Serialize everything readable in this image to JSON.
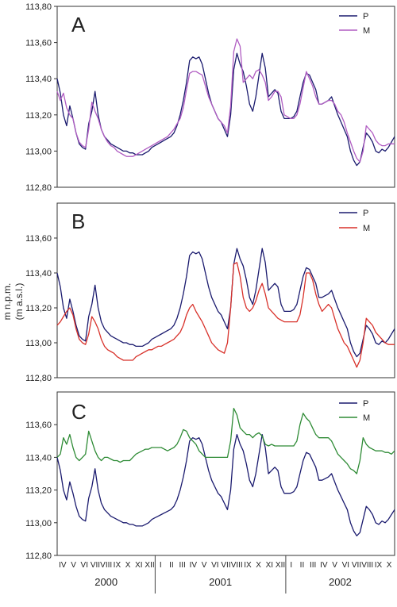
{
  "ylabel_lines": [
    "m n.p.m.",
    "(m a.s.l.)"
  ],
  "colors": {
    "P": "#1a1a6e",
    "A_M": "#b05cc2",
    "B_M": "#d8312a",
    "C_M": "#2e8b35"
  },
  "months": [
    "IV",
    "V",
    "VI",
    "VII",
    "VIII",
    "IX",
    "X",
    "XI",
    "XII",
    "I",
    "II",
    "III",
    "IV",
    "V",
    "VI",
    "VII",
    "VIII",
    "IX",
    "X",
    "XI",
    "XII",
    "I",
    "II",
    "III",
    "IV",
    "V",
    "VI",
    "VII",
    "VIII",
    "IX",
    "X"
  ],
  "years": [
    "2000",
    "2001",
    "2002"
  ],
  "chart_data": [
    {
      "type": "line",
      "panel": "A",
      "ylim": [
        112.8,
        113.8
      ],
      "yticks": [
        "112,80",
        "113,00",
        "113,20",
        "113,40",
        "113,60",
        "113,80"
      ],
      "legend_position": "top-right",
      "series": [
        {
          "name": "P",
          "color": "#1a1a6e",
          "values": [
            113.4,
            113.32,
            113.2,
            113.14,
            113.25,
            113.18,
            113.1,
            113.04,
            113.02,
            113.01,
            113.15,
            113.22,
            113.33,
            113.2,
            113.12,
            113.08,
            113.06,
            113.04,
            113.03,
            113.02,
            113.01,
            113.0,
            113.0,
            112.99,
            112.99,
            112.98,
            112.98,
            112.98,
            112.99,
            113.0,
            113.02,
            113.03,
            113.04,
            113.05,
            113.06,
            113.07,
            113.08,
            113.1,
            113.14,
            113.2,
            113.28,
            113.38,
            113.5,
            113.52,
            113.51,
            113.52,
            113.48,
            113.4,
            113.32,
            113.26,
            113.22,
            113.18,
            113.16,
            113.12,
            113.08,
            113.2,
            113.45,
            113.54,
            113.48,
            113.44,
            113.36,
            113.26,
            113.22,
            113.3,
            113.42,
            113.54,
            113.46,
            113.3,
            113.32,
            113.34,
            113.32,
            113.22,
            113.18,
            113.18,
            113.18,
            113.19,
            113.22,
            113.3,
            113.38,
            113.43,
            113.42,
            113.38,
            113.34,
            113.26,
            113.26,
            113.27,
            113.28,
            113.3,
            113.25,
            113.2,
            113.16,
            113.12,
            113.08,
            113.0,
            112.95,
            112.92,
            112.94,
            113.02,
            113.1,
            113.08,
            113.05,
            113.0,
            112.99,
            113.01,
            113.0,
            113.02,
            113.05,
            113.08
          ]
        },
        {
          "name": "M",
          "color": "#b05cc2",
          "values": [
            113.33,
            113.28,
            113.32,
            113.24,
            113.2,
            113.18,
            113.1,
            113.05,
            113.03,
            113.02,
            113.12,
            113.27,
            113.22,
            113.18,
            113.12,
            113.08,
            113.05,
            113.03,
            113.02,
            113.0,
            112.99,
            112.98,
            112.97,
            112.97,
            112.97,
            112.98,
            112.99,
            113.0,
            113.01,
            113.02,
            113.03,
            113.04,
            113.05,
            113.06,
            113.07,
            113.08,
            113.1,
            113.12,
            113.15,
            113.18,
            113.24,
            113.34,
            113.43,
            113.44,
            113.44,
            113.43,
            113.42,
            113.36,
            113.3,
            113.26,
            113.22,
            113.18,
            113.16,
            113.14,
            113.1,
            113.25,
            113.55,
            113.62,
            113.58,
            113.38,
            113.4,
            113.42,
            113.4,
            113.44,
            113.45,
            113.42,
            113.38,
            113.28,
            113.3,
            113.33,
            113.33,
            113.3,
            113.2,
            113.19,
            113.18,
            113.18,
            113.2,
            113.26,
            113.35,
            113.44,
            113.4,
            113.36,
            113.3,
            113.26,
            113.26,
            113.27,
            113.28,
            113.28,
            113.26,
            113.22,
            113.2,
            113.16,
            113.1,
            113.05,
            113.0,
            112.96,
            112.94,
            113.0,
            113.14,
            113.12,
            113.1,
            113.06,
            113.04,
            113.03,
            113.03,
            113.04,
            113.04,
            113.04
          ]
        }
      ]
    },
    {
      "type": "line",
      "panel": "B",
      "ylim": [
        112.8,
        113.8
      ],
      "yticks": [
        "112,80",
        "113,00",
        "113,20",
        "113,40",
        "113,60"
      ],
      "legend_position": "top-right",
      "series": [
        {
          "name": "P",
          "color": "#1a1a6e",
          "values": [
            113.4,
            113.32,
            113.2,
            113.14,
            113.25,
            113.18,
            113.1,
            113.04,
            113.02,
            113.01,
            113.15,
            113.22,
            113.33,
            113.2,
            113.12,
            113.08,
            113.06,
            113.04,
            113.03,
            113.02,
            113.01,
            113.0,
            113.0,
            112.99,
            112.99,
            112.98,
            112.98,
            112.98,
            112.99,
            113.0,
            113.02,
            113.03,
            113.04,
            113.05,
            113.06,
            113.07,
            113.08,
            113.1,
            113.14,
            113.2,
            113.28,
            113.38,
            113.5,
            113.52,
            113.51,
            113.52,
            113.48,
            113.4,
            113.32,
            113.26,
            113.22,
            113.18,
            113.16,
            113.12,
            113.08,
            113.2,
            113.45,
            113.54,
            113.48,
            113.44,
            113.36,
            113.26,
            113.22,
            113.3,
            113.42,
            113.54,
            113.46,
            113.3,
            113.32,
            113.34,
            113.32,
            113.22,
            113.18,
            113.18,
            113.18,
            113.19,
            113.22,
            113.3,
            113.38,
            113.43,
            113.42,
            113.38,
            113.34,
            113.26,
            113.26,
            113.27,
            113.28,
            113.3,
            113.25,
            113.2,
            113.16,
            113.12,
            113.08,
            113.0,
            112.95,
            112.92,
            112.94,
            113.02,
            113.1,
            113.08,
            113.05,
            113.0,
            112.99,
            113.01,
            113.0,
            113.02,
            113.05,
            113.08
          ]
        },
        {
          "name": "M",
          "color": "#d8312a",
          "values": [
            113.1,
            113.12,
            113.15,
            113.18,
            113.2,
            113.16,
            113.08,
            113.02,
            113.0,
            112.99,
            113.05,
            113.15,
            113.12,
            113.08,
            113.02,
            112.98,
            112.96,
            112.95,
            112.94,
            112.92,
            112.91,
            112.9,
            112.9,
            112.9,
            112.9,
            112.92,
            112.93,
            112.94,
            112.95,
            112.96,
            112.96,
            112.97,
            112.98,
            112.98,
            112.99,
            113.0,
            113.01,
            113.02,
            113.04,
            113.06,
            113.1,
            113.16,
            113.2,
            113.22,
            113.18,
            113.15,
            113.12,
            113.08,
            113.04,
            113.0,
            112.98,
            112.96,
            112.95,
            112.94,
            113.0,
            113.2,
            113.45,
            113.46,
            113.38,
            113.26,
            113.2,
            113.18,
            113.2,
            113.24,
            113.3,
            113.34,
            113.28,
            113.2,
            113.18,
            113.16,
            113.14,
            113.13,
            113.12,
            113.12,
            113.12,
            113.12,
            113.12,
            113.16,
            113.26,
            113.4,
            113.4,
            113.36,
            113.28,
            113.22,
            113.18,
            113.2,
            113.22,
            113.2,
            113.14,
            113.08,
            113.04,
            113.0,
            112.98,
            112.94,
            112.9,
            112.86,
            112.9,
            113.0,
            113.14,
            113.12,
            113.1,
            113.06,
            113.04,
            113.02,
            113.0,
            112.99,
            112.99,
            112.99
          ]
        }
      ]
    },
    {
      "type": "line",
      "panel": "C",
      "ylim": [
        112.8,
        113.8
      ],
      "yticks": [
        "112,80",
        "113,00",
        "113,20",
        "113,40",
        "113,60"
      ],
      "legend_position": "top-right",
      "series": [
        {
          "name": "P",
          "color": "#1a1a6e",
          "values": [
            113.4,
            113.32,
            113.2,
            113.14,
            113.25,
            113.18,
            113.1,
            113.04,
            113.02,
            113.01,
            113.15,
            113.22,
            113.33,
            113.2,
            113.12,
            113.08,
            113.06,
            113.04,
            113.03,
            113.02,
            113.01,
            113.0,
            113.0,
            112.99,
            112.99,
            112.98,
            112.98,
            112.98,
            112.99,
            113.0,
            113.02,
            113.03,
            113.04,
            113.05,
            113.06,
            113.07,
            113.08,
            113.1,
            113.14,
            113.2,
            113.28,
            113.38,
            113.5,
            113.52,
            113.51,
            113.52,
            113.48,
            113.4,
            113.32,
            113.26,
            113.22,
            113.18,
            113.16,
            113.12,
            113.08,
            113.2,
            113.45,
            113.54,
            113.48,
            113.44,
            113.36,
            113.26,
            113.22,
            113.3,
            113.42,
            113.54,
            113.46,
            113.3,
            113.32,
            113.34,
            113.32,
            113.22,
            113.18,
            113.18,
            113.18,
            113.19,
            113.22,
            113.3,
            113.38,
            113.43,
            113.42,
            113.38,
            113.34,
            113.26,
            113.26,
            113.27,
            113.28,
            113.3,
            113.25,
            113.2,
            113.16,
            113.12,
            113.08,
            113.0,
            112.95,
            112.92,
            112.94,
            113.02,
            113.1,
            113.08,
            113.05,
            113.0,
            112.99,
            113.01,
            113.0,
            113.02,
            113.05,
            113.08
          ]
        },
        {
          "name": "M",
          "color": "#2e8b35",
          "values": [
            113.4,
            113.42,
            113.52,
            113.48,
            113.54,
            113.46,
            113.4,
            113.38,
            113.4,
            113.42,
            113.56,
            113.5,
            113.44,
            113.4,
            113.38,
            113.4,
            113.4,
            113.39,
            113.38,
            113.38,
            113.37,
            113.38,
            113.38,
            113.38,
            113.4,
            113.42,
            113.43,
            113.44,
            113.45,
            113.45,
            113.46,
            113.46,
            113.46,
            113.46,
            113.45,
            113.44,
            113.45,
            113.46,
            113.48,
            113.52,
            113.57,
            113.56,
            113.52,
            113.5,
            113.48,
            113.44,
            113.42,
            113.4,
            113.4,
            113.4,
            113.4,
            113.4,
            113.4,
            113.4,
            113.4,
            113.5,
            113.7,
            113.66,
            113.58,
            113.56,
            113.54,
            113.54,
            113.52,
            113.54,
            113.55,
            113.53,
            113.48,
            113.47,
            113.48,
            113.47,
            113.47,
            113.47,
            113.47,
            113.47,
            113.47,
            113.47,
            113.5,
            113.6,
            113.67,
            113.64,
            113.62,
            113.58,
            113.54,
            113.52,
            113.52,
            113.52,
            113.52,
            113.5,
            113.46,
            113.42,
            113.4,
            113.38,
            113.36,
            113.33,
            113.32,
            113.3,
            113.38,
            113.52,
            113.48,
            113.46,
            113.45,
            113.44,
            113.44,
            113.44,
            113.43,
            113.43,
            113.42,
            113.44
          ]
        }
      ]
    }
  ]
}
